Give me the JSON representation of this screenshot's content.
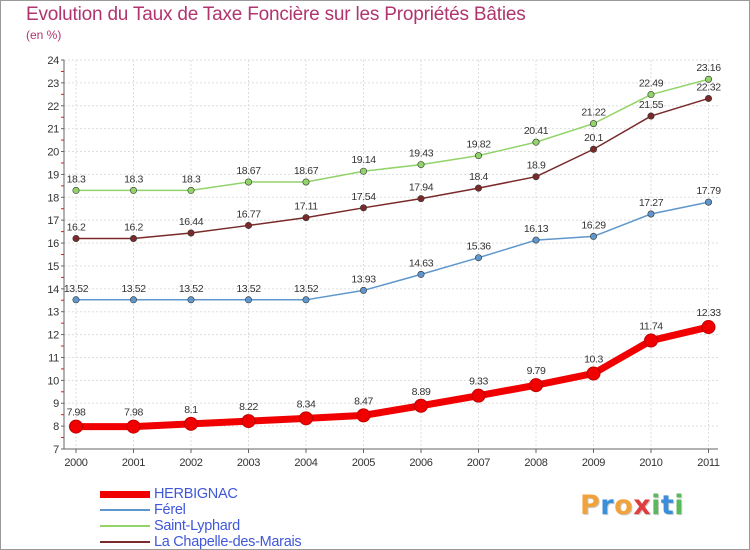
{
  "title": "Evolution du Taux de Taxe Foncière sur les Propriétés Bâties",
  "subtitle": "(en %)",
  "logo": {
    "letters": [
      "P",
      "r",
      "o",
      "x",
      "i",
      "t",
      "i"
    ],
    "colors": [
      "#f0a23c",
      "#3a8fd8",
      "#f0a23c",
      "#e03e3e",
      "#5cb85c",
      "#3a8fd8",
      "#5cb85c"
    ]
  },
  "chart_data": {
    "type": "line",
    "title": "Evolution du Taux de Taxe Foncière sur les Propriétés Bâties",
    "subtitle": "(en %)",
    "x": [
      "2000",
      "2001",
      "2002",
      "2003",
      "2004",
      "2005",
      "2006",
      "2007",
      "2008",
      "2009",
      "2010",
      "2011"
    ],
    "ylim": [
      7,
      24
    ],
    "yticks": [
      7,
      8,
      9,
      10,
      11,
      12,
      13,
      14,
      15,
      16,
      17,
      18,
      19,
      20,
      21,
      22,
      23,
      24
    ],
    "grid": true,
    "legend_position": "bottom-left",
    "series": [
      {
        "name": "HERBIGNAC",
        "color": "#f00000",
        "bold": true,
        "values": [
          7.98,
          7.98,
          8.1,
          8.22,
          8.34,
          8.47,
          8.89,
          9.33,
          9.79,
          10.3,
          11.74,
          12.33
        ],
        "labels": [
          "7.98",
          "7.98",
          "8.1",
          "8.22",
          "8.34",
          "8.47",
          "8.89",
          "9.33",
          "9.79",
          "10.3",
          "11.74",
          "12.33"
        ]
      },
      {
        "name": "Férel",
        "color": "#5f97cc",
        "bold": false,
        "values": [
          13.52,
          13.52,
          13.52,
          13.52,
          13.52,
          13.93,
          14.63,
          15.36,
          16.13,
          16.29,
          17.27,
          17.79
        ],
        "labels": [
          "13.52",
          "13.52",
          "13.52",
          "13.52",
          "13.52",
          "13.93",
          "14.63",
          "15.36",
          "16.13",
          "16.29",
          "17.27",
          "17.79"
        ]
      },
      {
        "name": "Saint-Lyphard",
        "color": "#92d36a",
        "bold": false,
        "values": [
          18.3,
          18.3,
          18.3,
          18.67,
          18.67,
          19.14,
          19.43,
          19.82,
          20.41,
          21.22,
          22.49,
          23.16
        ],
        "labels": [
          "18.3",
          "18.3",
          "18.3",
          "18.67",
          "18.67",
          "19.14",
          "19.43",
          "19.82",
          "20.41",
          "21.22",
          "22.49",
          "23.16"
        ]
      },
      {
        "name": "La Chapelle-des-Marais",
        "color": "#7a2a2a",
        "bold": false,
        "values": [
          16.2,
          16.2,
          16.44,
          16.77,
          17.11,
          17.54,
          17.94,
          18.4,
          18.9,
          20.1,
          21.55,
          22.32
        ],
        "labels": [
          "16.2",
          "16.2",
          "16.44",
          "16.77",
          "17.11",
          "17.54",
          "17.94",
          "18.4",
          "18.9",
          "20.1",
          "21.55",
          "22.32"
        ]
      }
    ]
  }
}
